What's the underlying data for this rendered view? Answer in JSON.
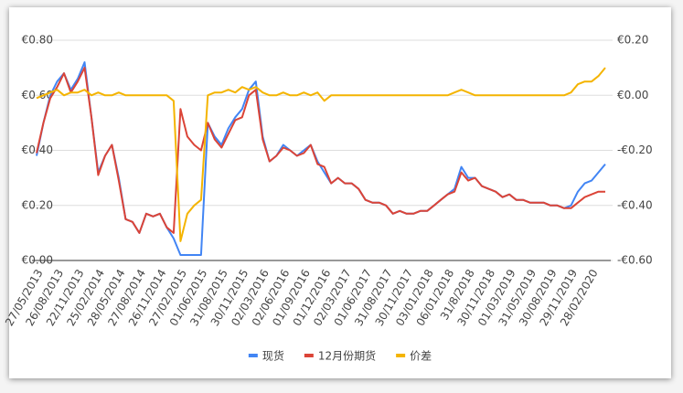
{
  "chart_data": {
    "type": "line",
    "categories": [
      "27/05/2013",
      null,
      null,
      "26/08/2013",
      null,
      null,
      "22/11/2013",
      null,
      null,
      "25/02/2014",
      null,
      null,
      "28/05/2014",
      null,
      null,
      "27/08/2014",
      null,
      null,
      "26/11/2014",
      null,
      null,
      "27/02/2015",
      null,
      null,
      "01/06/2015",
      null,
      null,
      "31/08/2015",
      null,
      null,
      "30/11/2015",
      null,
      null,
      "02/03/2016",
      null,
      null,
      "02/06/2016",
      null,
      null,
      "01/09/2016",
      null,
      null,
      "01/12/2016",
      null,
      null,
      "02/03/2017",
      null,
      null,
      "01/06/2017",
      null,
      null,
      "31/08/2017",
      null,
      null,
      "30/11/2017",
      null,
      null,
      "03/01/2018",
      null,
      null,
      "06/01/2018",
      null,
      null,
      "31/8/2018",
      null,
      null,
      "30/11/2018",
      null,
      null,
      "01/03/2019",
      null,
      null,
      "31/05/2019",
      null,
      null,
      "30/08/2019",
      null,
      null,
      "29/11/2019",
      null,
      null,
      "28/02/2020",
      null,
      null
    ],
    "series": [
      {
        "name": "现货",
        "color": "#4285f4",
        "values": [
          0.38,
          0.5,
          0.6,
          0.65,
          0.68,
          0.62,
          0.66,
          0.72,
          0.52,
          0.32,
          0.38,
          0.42,
          0.3,
          0.15,
          0.14,
          0.1,
          0.17,
          0.16,
          0.17,
          0.12,
          0.08,
          0.02,
          0.02,
          0.02,
          0.02,
          0.5,
          0.45,
          0.42,
          0.48,
          0.52,
          0.55,
          0.62,
          0.65,
          0.45,
          0.36,
          0.38,
          0.42,
          0.4,
          0.38,
          0.4,
          0.42,
          0.36,
          0.32,
          0.28,
          0.3,
          0.28,
          0.28,
          0.26,
          0.22,
          0.21,
          0.21,
          0.2,
          0.17,
          0.18,
          0.17,
          0.17,
          0.18,
          0.18,
          0.2,
          0.22,
          0.24,
          0.26,
          0.34,
          0.3,
          0.3,
          0.27,
          0.26,
          0.25,
          0.23,
          0.24,
          0.22,
          0.22,
          0.21,
          0.21,
          0.21,
          0.2,
          0.2,
          0.19,
          0.2,
          0.25,
          0.28,
          0.29,
          0.32,
          0.35
        ]
      },
      {
        "name": "12月份期货",
        "color": "#db4437",
        "values": [
          0.39,
          0.5,
          0.59,
          0.63,
          0.68,
          0.61,
          0.65,
          0.7,
          0.52,
          0.31,
          0.38,
          0.42,
          0.29,
          0.15,
          0.14,
          0.1,
          0.17,
          0.16,
          0.17,
          0.12,
          0.1,
          0.55,
          0.45,
          0.42,
          0.4,
          0.5,
          0.44,
          0.41,
          0.46,
          0.51,
          0.52,
          0.6,
          0.62,
          0.44,
          0.36,
          0.38,
          0.41,
          0.4,
          0.38,
          0.39,
          0.42,
          0.35,
          0.34,
          0.28,
          0.3,
          0.28,
          0.28,
          0.26,
          0.22,
          0.21,
          0.21,
          0.2,
          0.17,
          0.18,
          0.17,
          0.17,
          0.18,
          0.18,
          0.2,
          0.22,
          0.24,
          0.25,
          0.32,
          0.29,
          0.3,
          0.27,
          0.26,
          0.25,
          0.23,
          0.24,
          0.22,
          0.22,
          0.21,
          0.21,
          0.21,
          0.2,
          0.2,
          0.19,
          0.19,
          0.21,
          0.23,
          0.24,
          0.25,
          0.25
        ]
      },
      {
        "name": "价差",
        "color": "#f4b400",
        "axis": "y2",
        "values": [
          -0.01,
          0.0,
          0.01,
          0.02,
          0.0,
          0.01,
          0.01,
          0.02,
          0.0,
          0.01,
          0.0,
          0.0,
          0.01,
          0.0,
          0.0,
          0.0,
          0.0,
          0.0,
          0.0,
          0.0,
          -0.02,
          -0.53,
          -0.43,
          -0.4,
          -0.38,
          0.0,
          0.01,
          0.01,
          0.02,
          0.01,
          0.03,
          0.02,
          0.03,
          0.01,
          0.0,
          0.0,
          0.01,
          0.0,
          0.0,
          0.01,
          0.0,
          0.01,
          -0.02,
          0.0,
          0.0,
          0.0,
          0.0,
          0.0,
          0.0,
          0.0,
          0.0,
          0.0,
          0.0,
          0.0,
          0.0,
          0.0,
          0.0,
          0.0,
          0.0,
          0.0,
          0.0,
          0.01,
          0.02,
          0.01,
          0.0,
          0.0,
          0.0,
          0.0,
          0.0,
          0.0,
          0.0,
          0.0,
          0.0,
          0.0,
          0.0,
          0.0,
          0.0,
          0.0,
          0.01,
          0.04,
          0.05,
          0.05,
          0.07,
          0.1
        ]
      }
    ],
    "ylim": [
      0,
      0.8
    ],
    "yticks": [
      {
        "value": 0,
        "label": "€0.00"
      },
      {
        "value": 0.2,
        "label": "€0.20"
      },
      {
        "value": 0.4,
        "label": "€0.40"
      },
      {
        "value": 0.6,
        "label": "€0.60"
      },
      {
        "value": 0.8,
        "label": "€0.80"
      }
    ],
    "y2lim": [
      -0.6,
      0.2
    ],
    "y2ticks": [
      {
        "value": -0.6,
        "label": "-€0.60"
      },
      {
        "value": -0.4,
        "label": "-€0.40"
      },
      {
        "value": -0.2,
        "label": "-€0.20"
      },
      {
        "value": 0,
        "label": "€0.00"
      },
      {
        "value": 0.2,
        "label": "€0.20"
      }
    ],
    "grid": true,
    "legend": "bottom"
  }
}
